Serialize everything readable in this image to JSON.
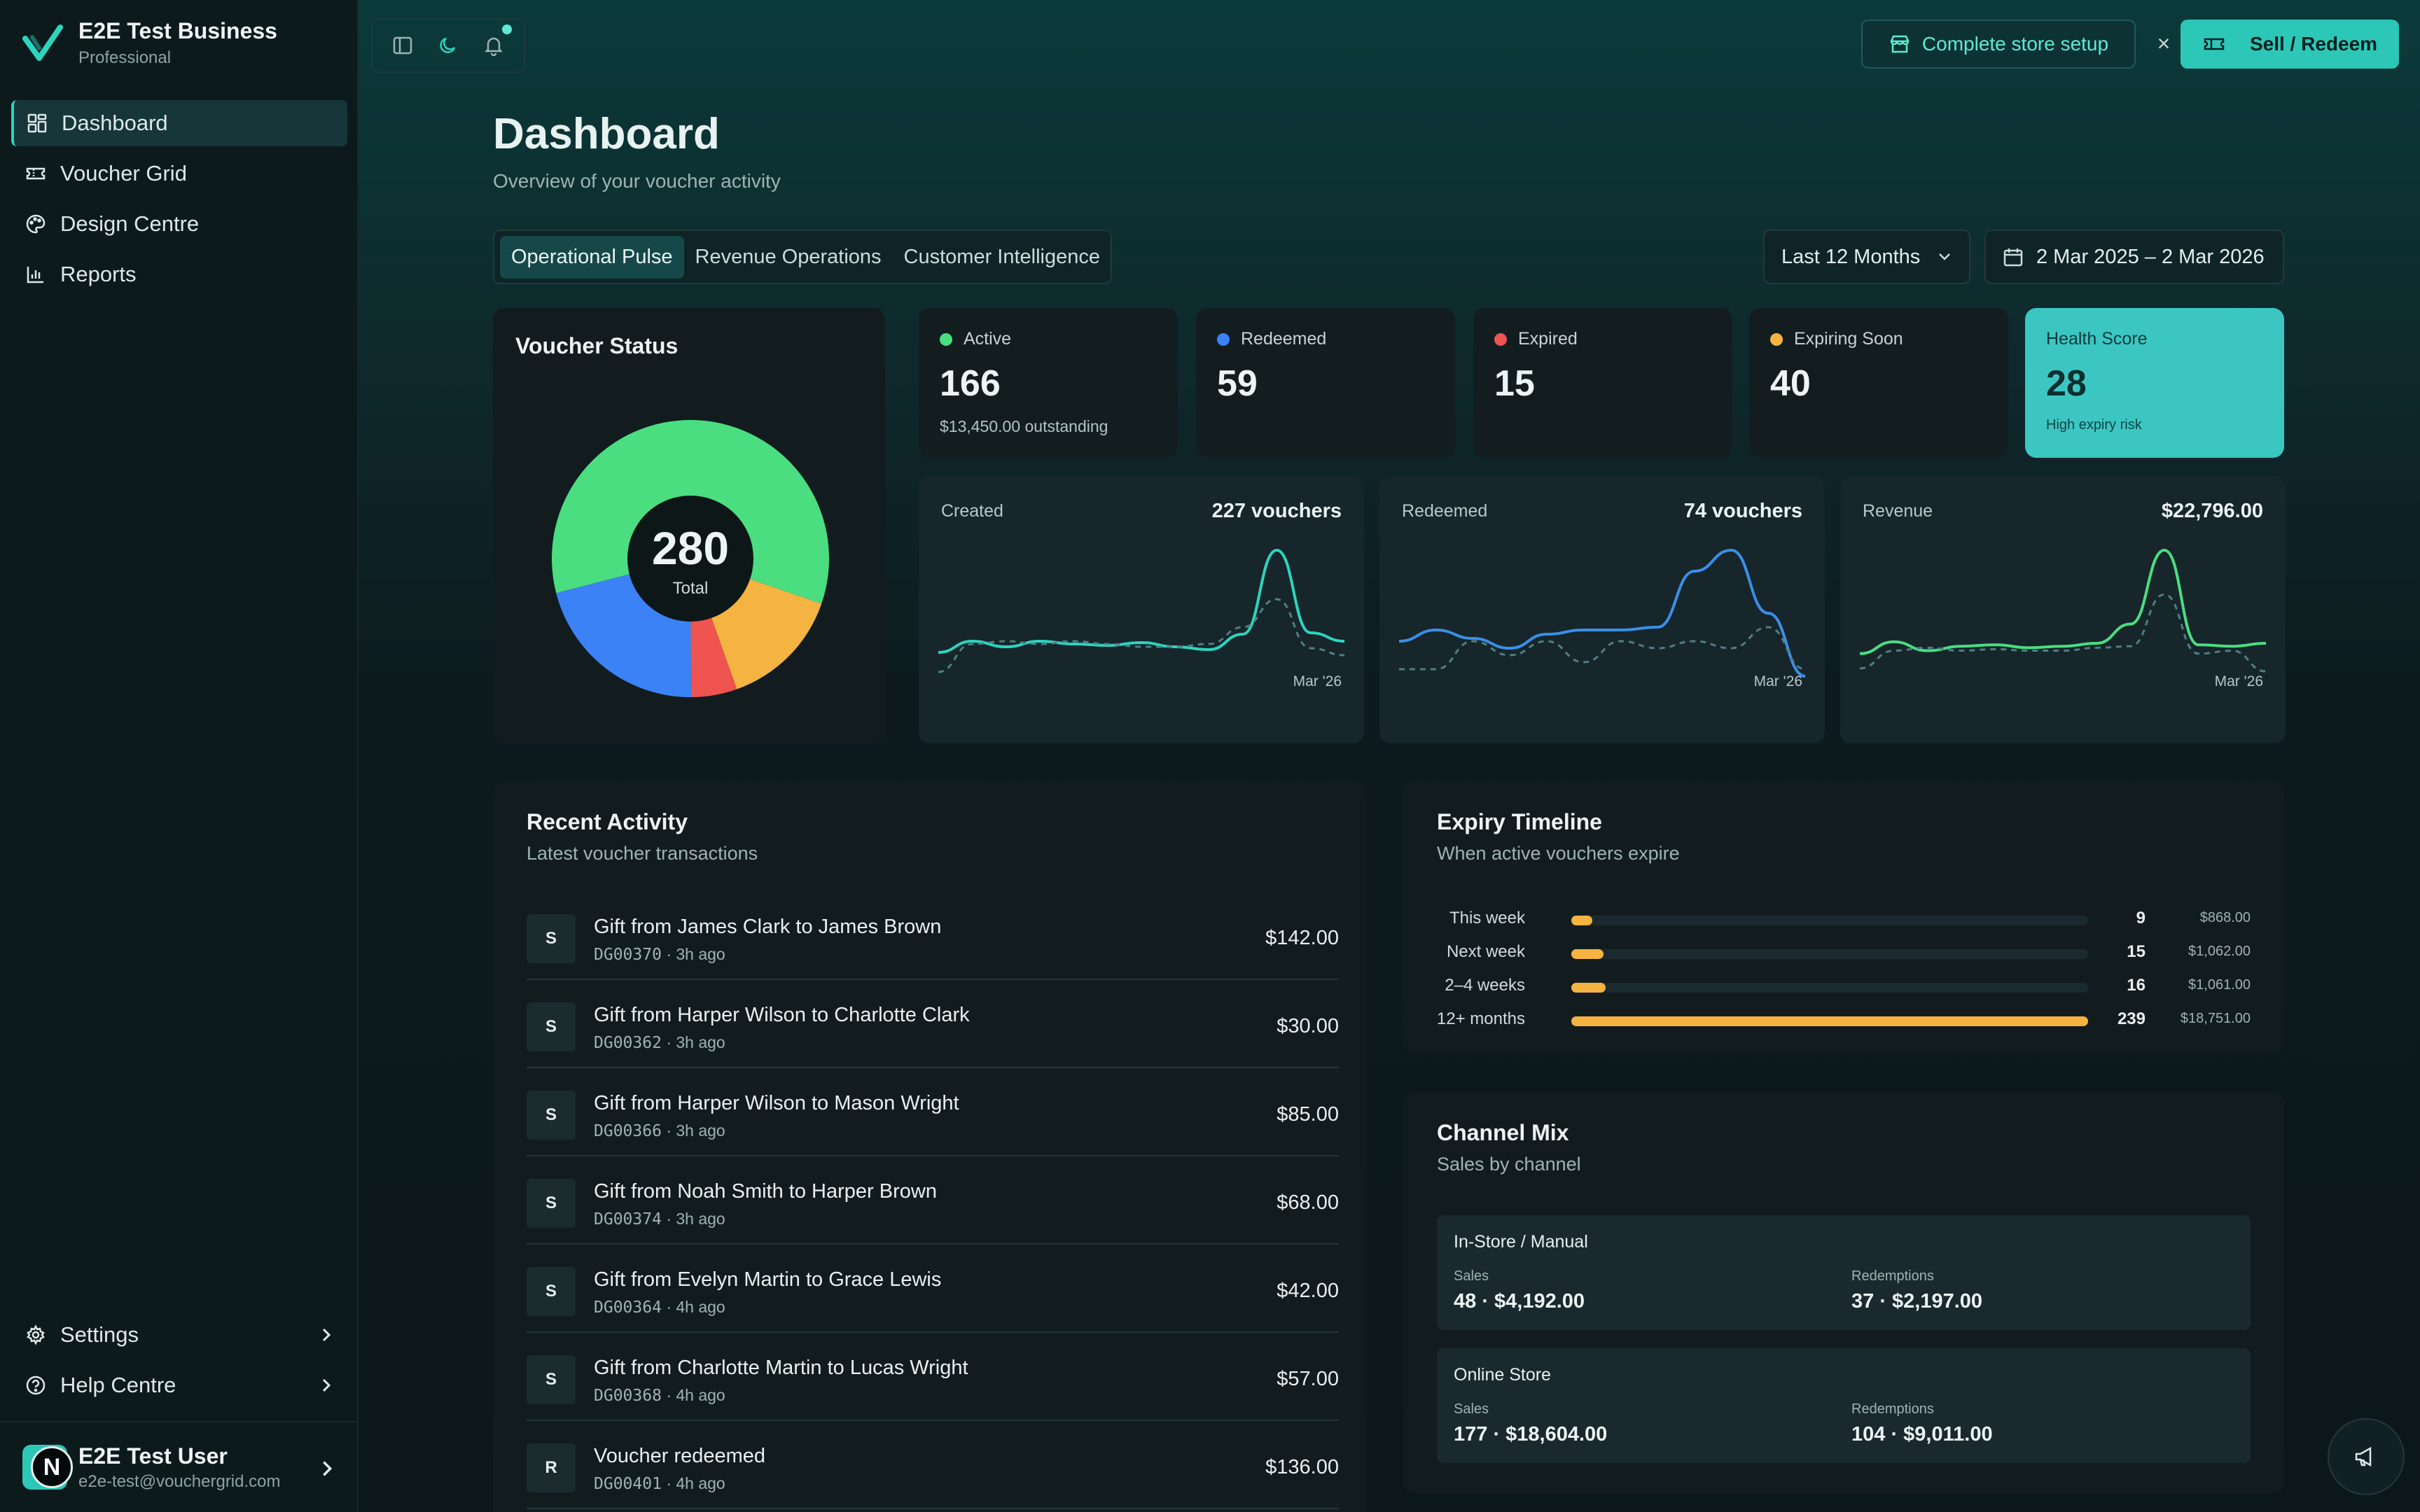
{
  "sidebar": {
    "brand_name": "E2E Test Business",
    "brand_plan": "Professional",
    "nav": [
      {
        "label": "Dashboard",
        "icon": "grid-icon",
        "active": true
      },
      {
        "label": "Voucher Grid",
        "icon": "ticket-icon"
      },
      {
        "label": "Design Centre",
        "icon": "palette-icon"
      },
      {
        "label": "Reports",
        "icon": "bar-chart-icon"
      }
    ],
    "bottom": [
      {
        "label": "Settings",
        "icon": "gear-icon"
      },
      {
        "label": "Help Centre",
        "icon": "help-circle-icon"
      }
    ],
    "user": {
      "initial": "N",
      "name": "E2E Test User",
      "email": "e2e-test@vouchergrid.com"
    }
  },
  "header": {
    "setup_label": "Complete store setup",
    "close_label": "×",
    "sell_label": "Sell / Redeem",
    "accent": "#2dc7b8"
  },
  "page": {
    "title": "Dashboard",
    "subtitle": "Overview of your voucher activity",
    "tabs": [
      {
        "label": "Operational Pulse",
        "active": true
      },
      {
        "label": "Revenue Operations"
      },
      {
        "label": "Customer Intelligence"
      }
    ],
    "range": "Last 12 Months",
    "date_range": "2 Mar 2025 – 2 Mar 2026"
  },
  "voucher_status": {
    "title": "Voucher Status",
    "total": "280",
    "total_label": "Total"
  },
  "stats": [
    {
      "label": "Active",
      "value": "166",
      "sub": "$13,450.00 outstanding",
      "color": "#4ade80"
    },
    {
      "label": "Redeemed",
      "value": "59",
      "sub": "",
      "color": "#3b82f6"
    },
    {
      "label": "Expired",
      "value": "15",
      "sub": "",
      "color": "#ef5350"
    },
    {
      "label": "Expiring Soon",
      "value": "40",
      "sub": "",
      "color": "#f5b341"
    },
    {
      "label": "Health Score",
      "value": "28",
      "sub": "High expiry risk",
      "color": "#3cc6c2"
    }
  ],
  "sparks": [
    {
      "label": "Created",
      "total": "227 vouchers",
      "x_label": "Mar '26",
      "color": "#2dd4bf"
    },
    {
      "label": "Redeemed",
      "total": "74 vouchers",
      "x_label": "Mar '26",
      "color": "#3b8fe6"
    },
    {
      "label": "Revenue",
      "total": "$22,796.00",
      "x_label": "Mar '26",
      "color": "#4ade80"
    }
  ],
  "activity": {
    "title": "Recent Activity",
    "subtitle": "Latest voucher transactions",
    "rows": [
      {
        "badge": "S",
        "title": "Gift from James Clark to James Brown",
        "code": "DG00370",
        "time": "· 3h ago",
        "amount": "$142.00"
      },
      {
        "badge": "S",
        "title": "Gift from Harper Wilson to Charlotte Clark",
        "code": "DG00362",
        "time": "· 3h ago",
        "amount": "$30.00"
      },
      {
        "badge": "S",
        "title": "Gift from Harper Wilson to Mason Wright",
        "code": "DG00366",
        "time": "· 3h ago",
        "amount": "$85.00"
      },
      {
        "badge": "S",
        "title": "Gift from Noah Smith to Harper Brown",
        "code": "DG00374",
        "time": "· 3h ago",
        "amount": "$68.00"
      },
      {
        "badge": "S",
        "title": "Gift from Evelyn Martin to Grace Lewis",
        "code": "DG00364",
        "time": "· 4h ago",
        "amount": "$42.00"
      },
      {
        "badge": "S",
        "title": "Gift from Charlotte Martin to Lucas Wright",
        "code": "DG00368",
        "time": "· 4h ago",
        "amount": "$57.00"
      },
      {
        "badge": "R",
        "title": "Voucher redeemed",
        "code": "DG00401",
        "time": "· 4h ago",
        "amount": "$136.00"
      }
    ]
  },
  "expiry": {
    "title": "Expiry Timeline",
    "subtitle": "When active vouchers expire",
    "rows": [
      {
        "label": "This week",
        "count": "9",
        "amount": "$868.00",
        "fraction": 0.04
      },
      {
        "label": "Next week",
        "count": "15",
        "amount": "$1,062.00",
        "fraction": 0.063
      },
      {
        "label": "2–4 weeks",
        "count": "16",
        "amount": "$1,061.00",
        "fraction": 0.067
      },
      {
        "label": "12+ months",
        "count": "239",
        "amount": "$18,751.00",
        "fraction": 1.0
      }
    ]
  },
  "channel": {
    "title": "Channel Mix",
    "subtitle": "Sales by channel",
    "sales_label": "Sales",
    "redemptions_label": "Redemptions",
    "rows": [
      {
        "name": "In-Store / Manual",
        "sales": "48 · $4,192.00",
        "redemptions": "37 · $2,197.00"
      },
      {
        "name": "Online Store",
        "sales": "177 · $18,604.00",
        "redemptions": "104 · $9,011.00"
      }
    ]
  },
  "chart_data": [
    {
      "type": "pie",
      "title": "Voucher Status",
      "categories": [
        "Active",
        "Expiring Soon",
        "Expired",
        "Redeemed"
      ],
      "values": [
        166,
        40,
        15,
        59
      ],
      "colors": [
        "#4ade80",
        "#f5b341",
        "#ef5350",
        "#3b82f6"
      ]
    },
    {
      "type": "line",
      "title": "Created",
      "series": [
        {
          "values": [
            22,
            30,
            26,
            30,
            28,
            27,
            29,
            26,
            24,
            35,
            95,
            36,
            30
          ]
        },
        {
          "values": [
            8,
            28,
            30,
            28,
            30,
            28,
            26,
            26,
            28,
            40,
            60,
            25,
            20
          ]
        }
      ]
    },
    {
      "type": "line",
      "title": "Redeemed",
      "series": [
        {
          "values": [
            30,
            38,
            32,
            25,
            35,
            38,
            38,
            40,
            80,
            95,
            50,
            5
          ]
        },
        {
          "values": [
            10,
            10,
            30,
            20,
            30,
            15,
            30,
            25,
            30,
            25,
            40,
            10
          ]
        }
      ]
    },
    {
      "type": "line",
      "title": "Revenue",
      "series": [
        {
          "values": [
            20,
            28,
            22,
            25,
            26,
            24,
            25,
            27,
            40,
            90,
            26,
            25,
            27
          ]
        },
        {
          "values": [
            10,
            22,
            24,
            22,
            23,
            22,
            22,
            24,
            25,
            60,
            20,
            22,
            8
          ]
        }
      ]
    }
  ]
}
